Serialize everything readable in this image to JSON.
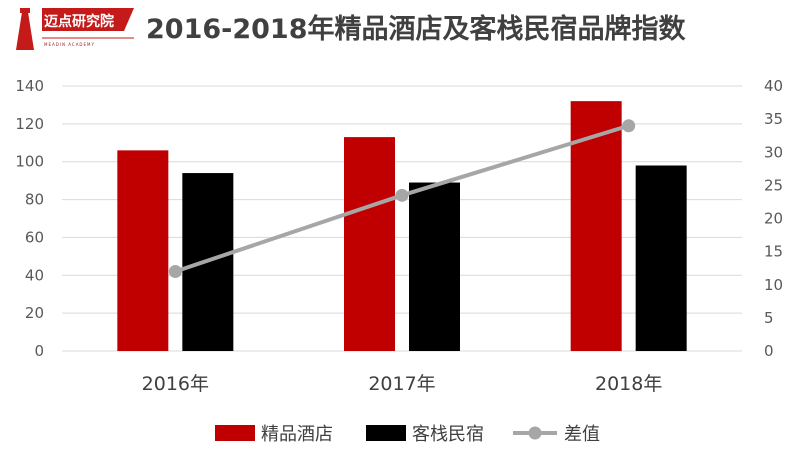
{
  "logo": {
    "name": "迈点研究院",
    "subtitle": "MEADIN ACADEMY"
  },
  "colors": {
    "boutique": "#C00000",
    "inn": "#000000",
    "diff": "#A6A6A6",
    "grid": "#D9D9D9",
    "logo_red": "#C41A1A"
  },
  "chart_data": {
    "type": "bar",
    "title": "2016-2018年精品酒店及客栈民宿品牌指数",
    "categories": [
      "2016年",
      "2017年",
      "2018年"
    ],
    "series": [
      {
        "name": "精品酒店",
        "type": "bar",
        "axis": "left",
        "values": [
          106,
          113,
          132
        ]
      },
      {
        "name": "客栈民宿",
        "type": "bar",
        "axis": "left",
        "values": [
          94,
          89,
          98
        ]
      },
      {
        "name": "差值",
        "type": "line",
        "axis": "right",
        "values": [
          12,
          23.5,
          34
        ]
      }
    ],
    "ylim": [
      0,
      140
    ],
    "yticks": [
      0,
      20,
      40,
      60,
      80,
      100,
      120,
      140
    ],
    "y2lim": [
      0,
      40
    ],
    "y2ticks": [
      0,
      5,
      10,
      15,
      20,
      25,
      30,
      35,
      40
    ],
    "grid": true,
    "legend_position": "bottom"
  }
}
